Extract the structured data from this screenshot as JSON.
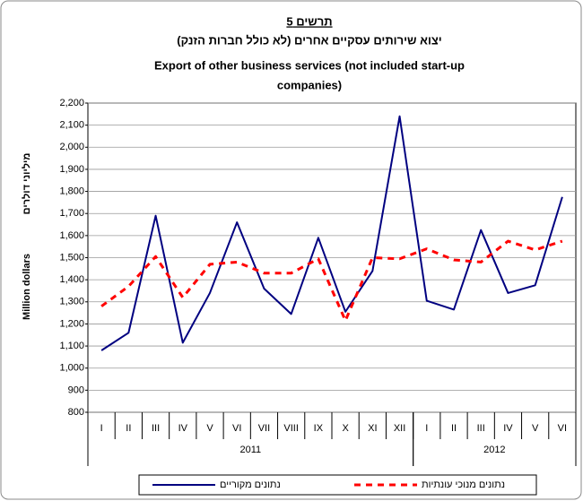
{
  "chart_data": {
    "type": "line",
    "title": "תרשים 5",
    "subtitle": "יצוא שירותים עסקיים אחרים (לא כולל חברות הזנק)",
    "title_en": [
      "Export of other business services (not included start-up",
      "companies)"
    ],
    "y_label": "Million dollars",
    "y_label_he": "מיליוני דולרים",
    "categories": [
      "I",
      "II",
      "III",
      "IV",
      "V",
      "VI",
      "VII",
      "VIII",
      "IX",
      "X",
      "XI",
      "XII",
      "I",
      "II",
      "III",
      "IV",
      "V",
      "VI"
    ],
    "groups": [
      {
        "label": "2011",
        "count": 12
      },
      {
        "label": "2012",
        "count": 6
      }
    ],
    "series": [
      {
        "name": "נתונים מקוריים",
        "color": "#000080",
        "dashed": false,
        "values": [
          1080,
          1160,
          1690,
          1115,
          1340,
          1660,
          1360,
          1245,
          1590,
          1255,
          1440,
          2140,
          1305,
          1265,
          1625,
          1340,
          1375,
          1775
        ]
      },
      {
        "name": "נתונים מנוכי עונתיות",
        "color": "#ff0000",
        "dashed": true,
        "values": [
          1280,
          1370,
          1505,
          1320,
          1470,
          1480,
          1430,
          1430,
          1495,
          1215,
          1500,
          1495,
          1540,
          1490,
          1480,
          1575,
          1535,
          1575
        ]
      }
    ],
    "ylim": [
      800,
      2200
    ],
    "yticks": [
      800,
      900,
      {
        "value": 1000,
        "label": "1,000"
      },
      {
        "value": 1100,
        "label": "1,100"
      },
      {
        "value": 1200,
        "label": "1,200"
      },
      {
        "value": 1300,
        "label": "1,300"
      },
      {
        "value": 1400,
        "label": "1,400"
      },
      {
        "value": 1500,
        "label": "1,500"
      },
      {
        "value": 1600,
        "label": "1,600"
      },
      {
        "value": 1700,
        "label": "1,700"
      },
      {
        "value": 1800,
        "label": "1,800"
      },
      {
        "value": 1900,
        "label": "1,900"
      },
      {
        "value": 2000,
        "label": "2,000"
      },
      {
        "value": 2100,
        "label": "2,100"
      },
      {
        "value": 2200,
        "label": "2,200"
      }
    ],
    "grid": true
  }
}
